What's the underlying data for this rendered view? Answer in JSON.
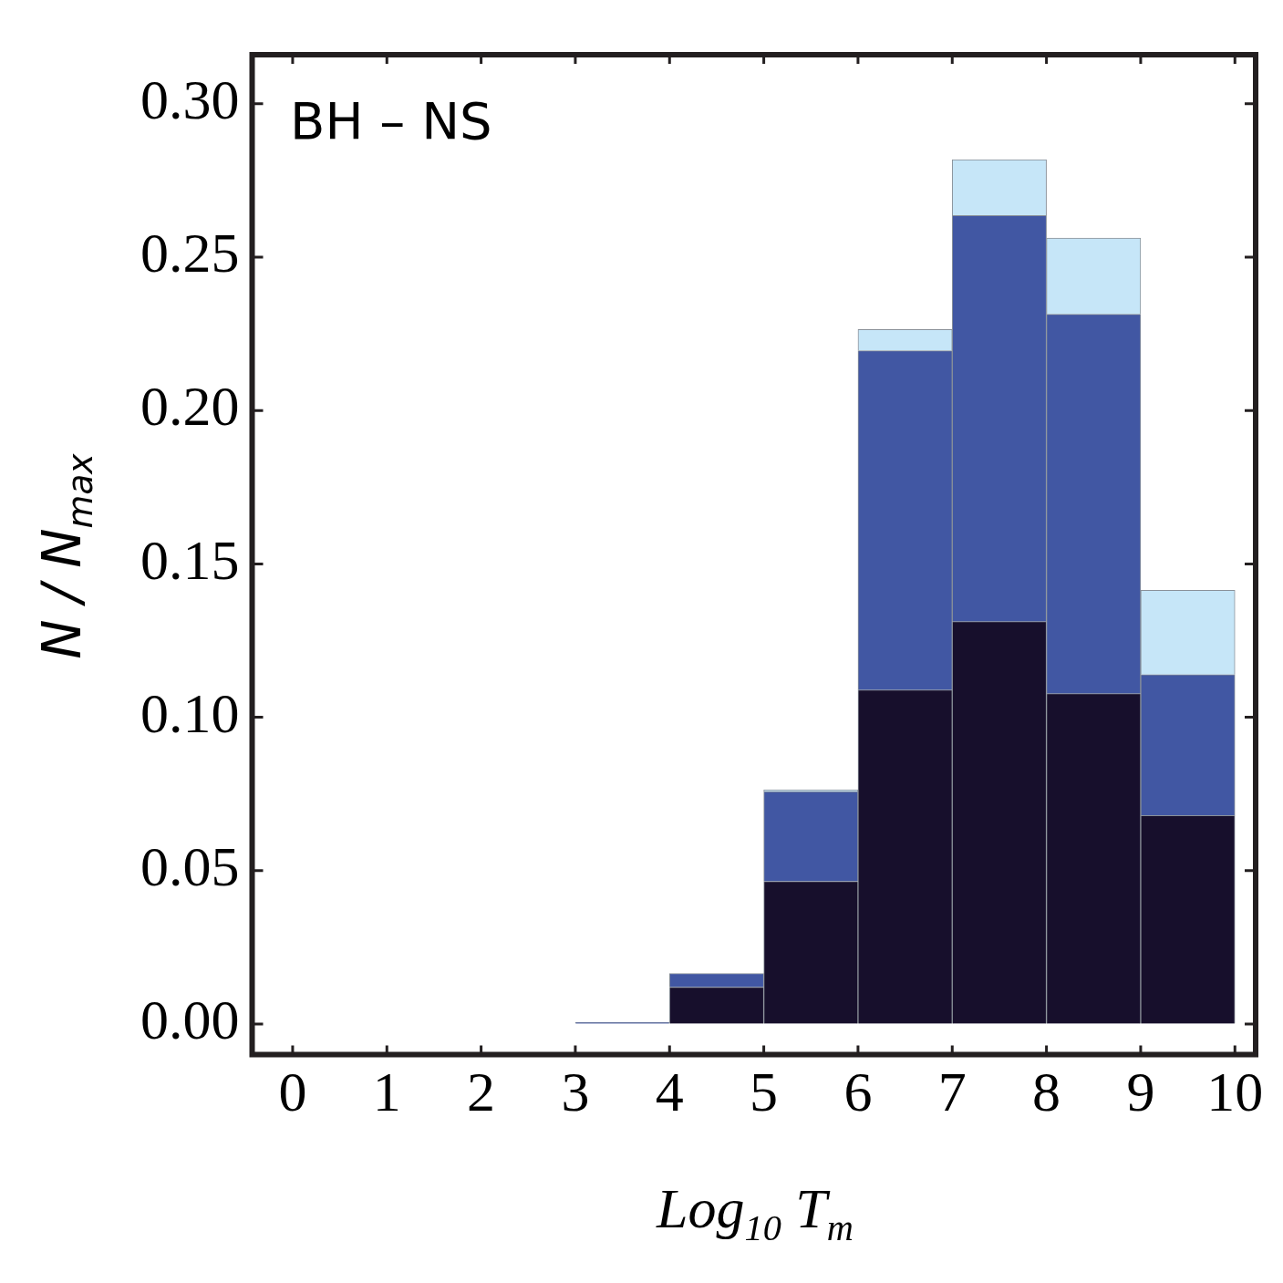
{
  "chart_data": {
    "type": "bar",
    "xlabel": "Log$_{10}$ T$_{m}$",
    "ylabel": "N / N$_{max}$",
    "annotations": [
      "BH – NS"
    ],
    "x": [
      0.5,
      1.5,
      2.5,
      3.5,
      4.5,
      5.5,
      6.5,
      7.5,
      8.5,
      9.5
    ],
    "series": [
      {
        "color": "#170f2c",
        "values": [
          0,
          0,
          0,
          0,
          0.012,
          0.0465,
          0.1089,
          0.1312,
          0.1077,
          0.068
        ]
      },
      {
        "color": "#4157a3",
        "values": [
          0,
          0,
          0,
          0.0005,
          0.0045,
          0.0293,
          0.1106,
          0.1324,
          0.1237,
          0.0459
        ]
      },
      {
        "color": "#c6e6f8",
        "values": [
          0,
          0,
          0,
          0,
          0,
          0.0006,
          0.0069,
          0.0182,
          0.0248,
          0.0275
        ]
      }
    ],
    "stacked": true,
    "xlim": [
      -0.43,
      10.22
    ],
    "ylim": [
      -0.01,
      0.316
    ],
    "xticks": [
      0,
      1,
      2,
      3,
      4,
      5,
      6,
      7,
      8,
      9,
      10
    ],
    "yticks": [
      {
        "value": 0,
        "label": "0.00"
      },
      {
        "value": 0.05,
        "label": "0.05"
      },
      {
        "value": 0.1,
        "label": "0.10"
      },
      {
        "value": 0.15,
        "label": "0.15"
      },
      {
        "value": 0.2,
        "label": "0.20"
      },
      {
        "value": 0.25,
        "label": "0.25"
      },
      {
        "value": 0.3,
        "label": "0.30"
      }
    ]
  }
}
